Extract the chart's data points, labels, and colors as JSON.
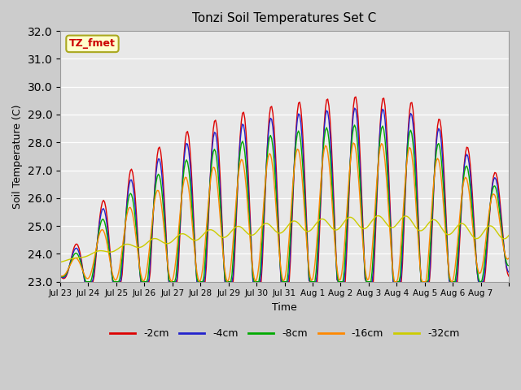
{
  "title": "Tonzi Soil Temperatures Set C",
  "xlabel": "Time",
  "ylabel": "Soil Temperature (C)",
  "ylim": [
    23.0,
    32.0
  ],
  "yticks": [
    23.0,
    24.0,
    25.0,
    26.0,
    27.0,
    28.0,
    29.0,
    30.0,
    31.0,
    32.0
  ],
  "legend_label": "TZ_fmet",
  "series_colors": {
    "-2cm": "#dd0000",
    "-4cm": "#2222cc",
    "-8cm": "#00aa00",
    "-16cm": "#ff8800",
    "-32cm": "#cccc00"
  },
  "xtick_labels": [
    "Jul 23",
    "Jul 24",
    "Jul 25",
    "Jul 26",
    "Jul 27",
    "Jul 28",
    "Jul 29",
    "Jul 30",
    "Jul 31",
    "Aug 1",
    "Aug 2",
    "Aug 3",
    "Aug 4",
    "Aug 5",
    "Aug 6",
    "Aug 7",
    ""
  ],
  "n_points": 385
}
